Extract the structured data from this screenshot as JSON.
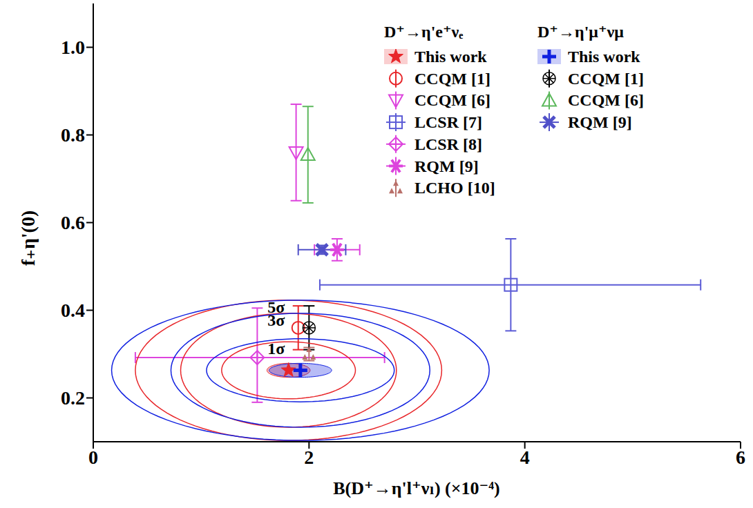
{
  "chart_data": {
    "type": "scatter",
    "x_label": "B(D⁺→η'l⁺νₗ) (×10⁻⁴)",
    "y_label": "f₊η'(0)",
    "xlim": [
      0,
      6
    ],
    "ylim": [
      0.1,
      1.1
    ],
    "xticks": [
      0,
      2,
      4,
      6
    ],
    "yticks": [
      0.2,
      0.4,
      0.6,
      0.8,
      {
        "value": 1,
        "label": "1.0"
      }
    ],
    "groups": [
      {
        "title": "D⁺→η'e⁺νₑ",
        "series": [
          {
            "name": "This work",
            "color": "#e8262a",
            "marker": "star",
            "x": [
              1.81
            ],
            "values": [
              0.263
            ],
            "ellipse": {
              "rx": 0.2,
              "ry": 0.016
            },
            "contours": [
              {
                "label": "1σ",
                "rx": 0.62,
                "ry": 0.065
              },
              {
                "label": "3σ",
                "rx": 1.0,
                "ry": 0.13
              },
              {
                "label": "5σ",
                "rx": 1.42,
                "ry": 0.16
              }
            ]
          },
          {
            "name": "CCQM [1]",
            "color": "#e8262a",
            "marker": "circle",
            "x": [
              1.9
            ],
            "values": [
              0.36
            ],
            "y_error": [
              [
                0.05,
                0.05
              ]
            ]
          },
          {
            "name": "CCQM [6]",
            "color": "#dd44dd",
            "marker": "triangle-down",
            "x": [
              1.88
            ],
            "values": [
              0.76
            ],
            "y_error": [
              [
                0.11,
                0.11
              ]
            ]
          },
          {
            "name": "LCSR [7]",
            "color": "#5b5bd6",
            "marker": "square",
            "x": [
              3.87
            ],
            "values": [
              0.458
            ],
            "x_error": [
              [
                1.77,
                1.76
              ]
            ],
            "y_error": [
              [
                0.105,
                0.105
              ]
            ]
          },
          {
            "name": "LCSR [8]",
            "color": "#dd44dd",
            "marker": "diamond-plus",
            "x": [
              1.52
            ],
            "values": [
              0.292
            ],
            "x_error": [
              [
                1.13,
                1.18
              ]
            ],
            "y_error": [
              [
                0.102,
                0.113
              ]
            ]
          },
          {
            "name": "RQM [9]",
            "color": "#dd44dd",
            "marker": "asterisk",
            "x": [
              2.26
            ],
            "values": [
              0.538
            ],
            "x_error": [
              [
                0.21,
                0.21
              ]
            ],
            "y_error": [
              [
                0.025,
                0.025
              ]
            ]
          },
          {
            "name": "LCHO [10]",
            "color": "#b9706a",
            "marker": "triangles",
            "x": [
              2.0
            ],
            "values": [
              0.3
            ],
            "y_error": [
              [
                0.015,
                0.015
              ]
            ]
          }
        ]
      },
      {
        "title": "D⁺→η'μ⁺νμ",
        "series": [
          {
            "name": "This work",
            "color": "#1020e0",
            "marker": "plus",
            "x": [
              1.92
            ],
            "values": [
              0.263
            ],
            "ellipse": {
              "rx": 0.29,
              "ry": 0.016
            },
            "contours": [
              {
                "rx": 0.87,
                "ry": 0.072
              },
              {
                "rx": 1.2,
                "ry": 0.13
              },
              {
                "rx": 1.75,
                "ry": 0.16
              }
            ]
          },
          {
            "name": "CCQM [1]",
            "color": "#000000",
            "marker": "circled-asterisk",
            "x": [
              2.0
            ],
            "values": [
              0.36
            ],
            "y_error": [
              [
                0.05,
                0.05
              ]
            ]
          },
          {
            "name": "CCQM [6]",
            "color": "#5cb85c",
            "marker": "triangle-up",
            "x": [
              1.99
            ],
            "values": [
              0.755
            ],
            "y_error": [
              [
                0.11,
                0.11
              ]
            ]
          },
          {
            "name": "RQM [9]",
            "color": "#5050c8",
            "marker": "x",
            "x": [
              2.12
            ],
            "values": [
              0.538
            ],
            "x_error": [
              [
                0.22,
                0.22
              ]
            ],
            "y_error": [
              [
                0.01,
                0.01
              ]
            ]
          }
        ]
      }
    ]
  }
}
